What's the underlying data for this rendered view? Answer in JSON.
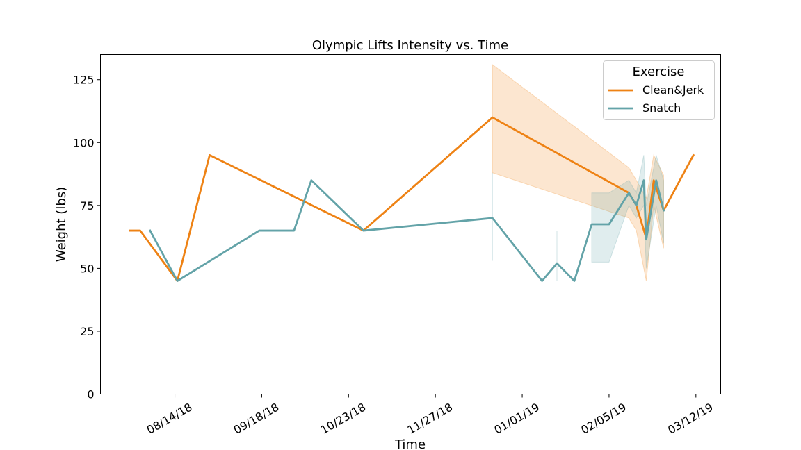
{
  "chart_data": {
    "type": "line",
    "title": "Olympic Lifts Intensity vs. Time",
    "xlabel": "Time",
    "ylabel": "Weight (lbs)",
    "ylim": [
      0,
      135
    ],
    "yticks": [
      0,
      25,
      50,
      75,
      100,
      125
    ],
    "xlim": [
      "2018-07-15",
      "2019-03-22"
    ],
    "xticks": [
      {
        "date": "2018-08-14",
        "label": "08/14/18"
      },
      {
        "date": "2018-09-18",
        "label": "09/18/18"
      },
      {
        "date": "2018-10-23",
        "label": "10/23/18"
      },
      {
        "date": "2018-11-27",
        "label": "11/27/18"
      },
      {
        "date": "2019-01-01",
        "label": "01/01/19"
      },
      {
        "date": "2019-02-05",
        "label": "02/05/19"
      },
      {
        "date": "2019-03-12",
        "label": "03/12/19"
      }
    ],
    "legend": {
      "title": "Exercise",
      "position": "top-right"
    },
    "series": [
      {
        "name": "Clean&Jerk",
        "color": "#ee8214",
        "points": [
          {
            "x": "2018-07-27",
            "y": 65
          },
          {
            "x": "2018-07-31",
            "y": 65
          },
          {
            "x": "2018-08-15",
            "y": 45
          },
          {
            "x": "2018-08-28",
            "y": 95
          },
          {
            "x": "2018-10-29",
            "y": 65
          },
          {
            "x": "2018-12-20",
            "y": 110,
            "lo": 88,
            "hi": 131
          },
          {
            "x": "2019-02-13",
            "y": 80,
            "lo": 70,
            "hi": 90
          },
          {
            "x": "2019-02-16",
            "y": 75,
            "lo": 65,
            "hi": 85
          },
          {
            "x": "2019-02-20",
            "y": 62,
            "lo": 45,
            "hi": 78
          },
          {
            "x": "2019-02-23",
            "y": 85,
            "lo": 75,
            "hi": 95
          },
          {
            "x": "2019-02-27",
            "y": 73,
            "lo": 58,
            "hi": 87
          },
          {
            "x": "2019-03-11",
            "y": 95
          }
        ]
      },
      {
        "name": "Snatch",
        "color": "#63a3a8",
        "points": [
          {
            "x": "2018-08-04",
            "y": 65
          },
          {
            "x": "2018-08-15",
            "y": 45
          },
          {
            "x": "2018-09-17",
            "y": 65
          },
          {
            "x": "2018-10-01",
            "y": 65
          },
          {
            "x": "2018-10-08",
            "y": 85
          },
          {
            "x": "2018-10-29",
            "y": 65
          },
          {
            "x": "2018-12-20",
            "y": 70,
            "lo": 53,
            "hi": 88
          },
          {
            "x": "2019-01-09",
            "y": 45
          },
          {
            "x": "2019-01-15",
            "y": 52,
            "lo": 45,
            "hi": 65
          },
          {
            "x": "2019-01-22",
            "y": 45
          },
          {
            "x": "2019-01-29",
            "y": 67.5,
            "lo": 52.5,
            "hi": 80
          },
          {
            "x": "2019-02-05",
            "y": 67.5,
            "lo": 52.5,
            "hi": 80
          },
          {
            "x": "2019-02-13",
            "y": 80,
            "lo": 75,
            "hi": 85
          },
          {
            "x": "2019-02-16",
            "y": 75,
            "lo": 70,
            "hi": 80
          },
          {
            "x": "2019-02-19",
            "y": 85,
            "lo": 75,
            "hi": 95
          },
          {
            "x": "2019-02-20",
            "y": 61.5,
            "lo": 50,
            "hi": 75
          },
          {
            "x": "2019-02-24",
            "y": 85,
            "lo": 75,
            "hi": 95
          },
          {
            "x": "2019-02-27",
            "y": 73,
            "lo": 60,
            "hi": 85
          }
        ]
      }
    ]
  }
}
